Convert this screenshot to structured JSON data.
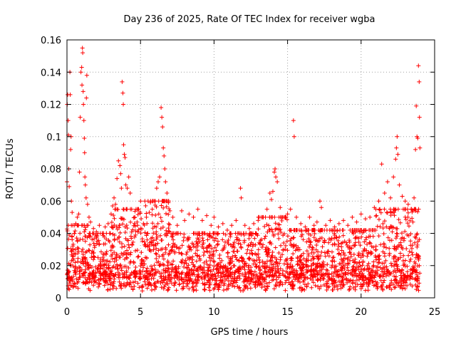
{
  "chart_data": {
    "type": "scatter",
    "title": "Day 236 of 2025, Rate Of TEC Index for receiver wgba",
    "xlabel": "GPS time / hours",
    "ylabel": "ROTI / TECUs",
    "xlim": [
      0,
      25
    ],
    "ylim": [
      0,
      0.16
    ],
    "xticks": [
      0,
      5,
      10,
      15,
      20,
      25
    ],
    "xtick_labels": [
      "0",
      "5",
      "10",
      "15",
      "20",
      "25"
    ],
    "yticks": [
      0,
      0.02,
      0.04,
      0.06,
      0.08,
      0.1,
      0.12,
      0.14,
      0.16
    ],
    "ytick_labels": [
      "0",
      "0.02",
      "0.04",
      "0.06",
      "0.08",
      "0.1",
      "0.12",
      "0.14",
      "0.16"
    ],
    "grid": true,
    "marker": "+",
    "color": "#ff0000",
    "series": [
      {
        "name": "ROTI",
        "points": [
          [
            0.0,
            0.072
          ],
          [
            0.02,
            0.12
          ],
          [
            0.05,
            0.126
          ],
          [
            0.08,
            0.11
          ],
          [
            0.1,
            0.101
          ],
          [
            0.12,
            0.08
          ],
          [
            0.15,
            0.069
          ],
          [
            0.2,
            0.14
          ],
          [
            0.22,
            0.126
          ],
          [
            0.25,
            0.092
          ],
          [
            0.28,
            0.1
          ],
          [
            0.3,
            0.06
          ],
          [
            0.35,
            0.053
          ],
          [
            0.4,
            0.045
          ],
          [
            0.5,
            0.04
          ],
          [
            0.6,
            0.046
          ],
          [
            0.7,
            0.05
          ],
          [
            0.8,
            0.052
          ],
          [
            0.85,
            0.078
          ],
          [
            0.9,
            0.112
          ],
          [
            0.95,
            0.14
          ],
          [
            1.0,
            0.143
          ],
          [
            1.02,
            0.132
          ],
          [
            1.05,
            0.155
          ],
          [
            1.07,
            0.152
          ],
          [
            1.1,
            0.128
          ],
          [
            1.12,
            0.12
          ],
          [
            1.15,
            0.11
          ],
          [
            1.18,
            0.099
          ],
          [
            1.2,
            0.09
          ],
          [
            1.22,
            0.075
          ],
          [
            1.25,
            0.07
          ],
          [
            1.3,
            0.062
          ],
          [
            1.32,
            0.124
          ],
          [
            1.35,
            0.138
          ],
          [
            1.4,
            0.058
          ],
          [
            1.5,
            0.05
          ],
          [
            1.6,
            0.047
          ],
          [
            1.8,
            0.043
          ],
          [
            2.0,
            0.041
          ],
          [
            2.2,
            0.045
          ],
          [
            2.4,
            0.04
          ],
          [
            2.6,
            0.044
          ],
          [
            2.8,
            0.046
          ],
          [
            3.0,
            0.052
          ],
          [
            3.1,
            0.057
          ],
          [
            3.2,
            0.062
          ],
          [
            3.3,
            0.058
          ],
          [
            3.4,
            0.074
          ],
          [
            3.5,
            0.085
          ],
          [
            3.6,
            0.082
          ],
          [
            3.65,
            0.077
          ],
          [
            3.7,
            0.068
          ],
          [
            3.75,
            0.134
          ],
          [
            3.8,
            0.127
          ],
          [
            3.83,
            0.12
          ],
          [
            3.85,
            0.095
          ],
          [
            3.9,
            0.089
          ],
          [
            3.95,
            0.087
          ],
          [
            4.0,
            0.07
          ],
          [
            4.1,
            0.068
          ],
          [
            4.2,
            0.075
          ],
          [
            4.3,
            0.065
          ],
          [
            4.4,
            0.055
          ],
          [
            4.6,
            0.05
          ],
          [
            4.8,
            0.045
          ],
          [
            5.0,
            0.043
          ],
          [
            5.2,
            0.046
          ],
          [
            5.4,
            0.05
          ],
          [
            5.6,
            0.053
          ],
          [
            5.8,
            0.055
          ],
          [
            6.0,
            0.06
          ],
          [
            6.1,
            0.068
          ],
          [
            6.2,
            0.072
          ],
          [
            6.3,
            0.075
          ],
          [
            6.4,
            0.118
          ],
          [
            6.45,
            0.112
          ],
          [
            6.5,
            0.106
          ],
          [
            6.55,
            0.093
          ],
          [
            6.6,
            0.088
          ],
          [
            6.65,
            0.08
          ],
          [
            6.7,
            0.072
          ],
          [
            6.8,
            0.065
          ],
          [
            6.9,
            0.06
          ],
          [
            7.0,
            0.054
          ],
          [
            7.2,
            0.05
          ],
          [
            7.5,
            0.045
          ],
          [
            7.8,
            0.054
          ],
          [
            8.0,
            0.048
          ],
          [
            8.3,
            0.052
          ],
          [
            8.6,
            0.05
          ],
          [
            8.9,
            0.055
          ],
          [
            9.2,
            0.048
          ],
          [
            9.5,
            0.051
          ],
          [
            9.8,
            0.045
          ],
          [
            10.0,
            0.05
          ],
          [
            10.3,
            0.044
          ],
          [
            10.6,
            0.046
          ],
          [
            10.9,
            0.042
          ],
          [
            11.2,
            0.045
          ],
          [
            11.5,
            0.048
          ],
          [
            11.8,
            0.068
          ],
          [
            11.85,
            0.062
          ],
          [
            12.1,
            0.045
          ],
          [
            12.4,
            0.043
          ],
          [
            12.7,
            0.046
          ],
          [
            13.0,
            0.048
          ],
          [
            13.3,
            0.05
          ],
          [
            13.6,
            0.055
          ],
          [
            13.8,
            0.065
          ],
          [
            13.9,
            0.061
          ],
          [
            14.0,
            0.066
          ],
          [
            14.1,
            0.078
          ],
          [
            14.15,
            0.08
          ],
          [
            14.2,
            0.075
          ],
          [
            14.3,
            0.072
          ],
          [
            14.5,
            0.056
          ],
          [
            14.8,
            0.05
          ],
          [
            15.0,
            0.052
          ],
          [
            15.2,
            0.055
          ],
          [
            15.4,
            0.11
          ],
          [
            15.45,
            0.1
          ],
          [
            15.6,
            0.05
          ],
          [
            15.9,
            0.046
          ],
          [
            16.2,
            0.044
          ],
          [
            16.5,
            0.05
          ],
          [
            16.8,
            0.045
          ],
          [
            17.0,
            0.047
          ],
          [
            17.2,
            0.06
          ],
          [
            17.3,
            0.056
          ],
          [
            17.6,
            0.045
          ],
          [
            17.9,
            0.048
          ],
          [
            18.2,
            0.044
          ],
          [
            18.5,
            0.046
          ],
          [
            18.8,
            0.048
          ],
          [
            19.1,
            0.045
          ],
          [
            19.4,
            0.05
          ],
          [
            19.7,
            0.047
          ],
          [
            20.0,
            0.052
          ],
          [
            20.3,
            0.049
          ],
          [
            20.6,
            0.05
          ],
          [
            20.9,
            0.056
          ],
          [
            21.2,
            0.06
          ],
          [
            21.4,
            0.083
          ],
          [
            21.6,
            0.065
          ],
          [
            21.8,
            0.072
          ],
          [
            22.0,
            0.062
          ],
          [
            22.2,
            0.075
          ],
          [
            22.35,
            0.086
          ],
          [
            22.4,
            0.093
          ],
          [
            22.45,
            0.1
          ],
          [
            22.5,
            0.089
          ],
          [
            22.6,
            0.07
          ],
          [
            22.8,
            0.063
          ],
          [
            23.0,
            0.06
          ],
          [
            23.2,
            0.058
          ],
          [
            23.4,
            0.055
          ],
          [
            23.6,
            0.062
          ],
          [
            23.7,
            0.092
          ],
          [
            23.75,
            0.119
          ],
          [
            23.8,
            0.1
          ],
          [
            23.85,
            0.099
          ],
          [
            23.9,
            0.144
          ],
          [
            23.95,
            0.134
          ],
          [
            23.97,
            0.112
          ],
          [
            24.0,
            0.093
          ]
        ],
        "baseline_note": "dense cloud of low values 0.003–0.04 across 0–24 h"
      }
    ]
  }
}
